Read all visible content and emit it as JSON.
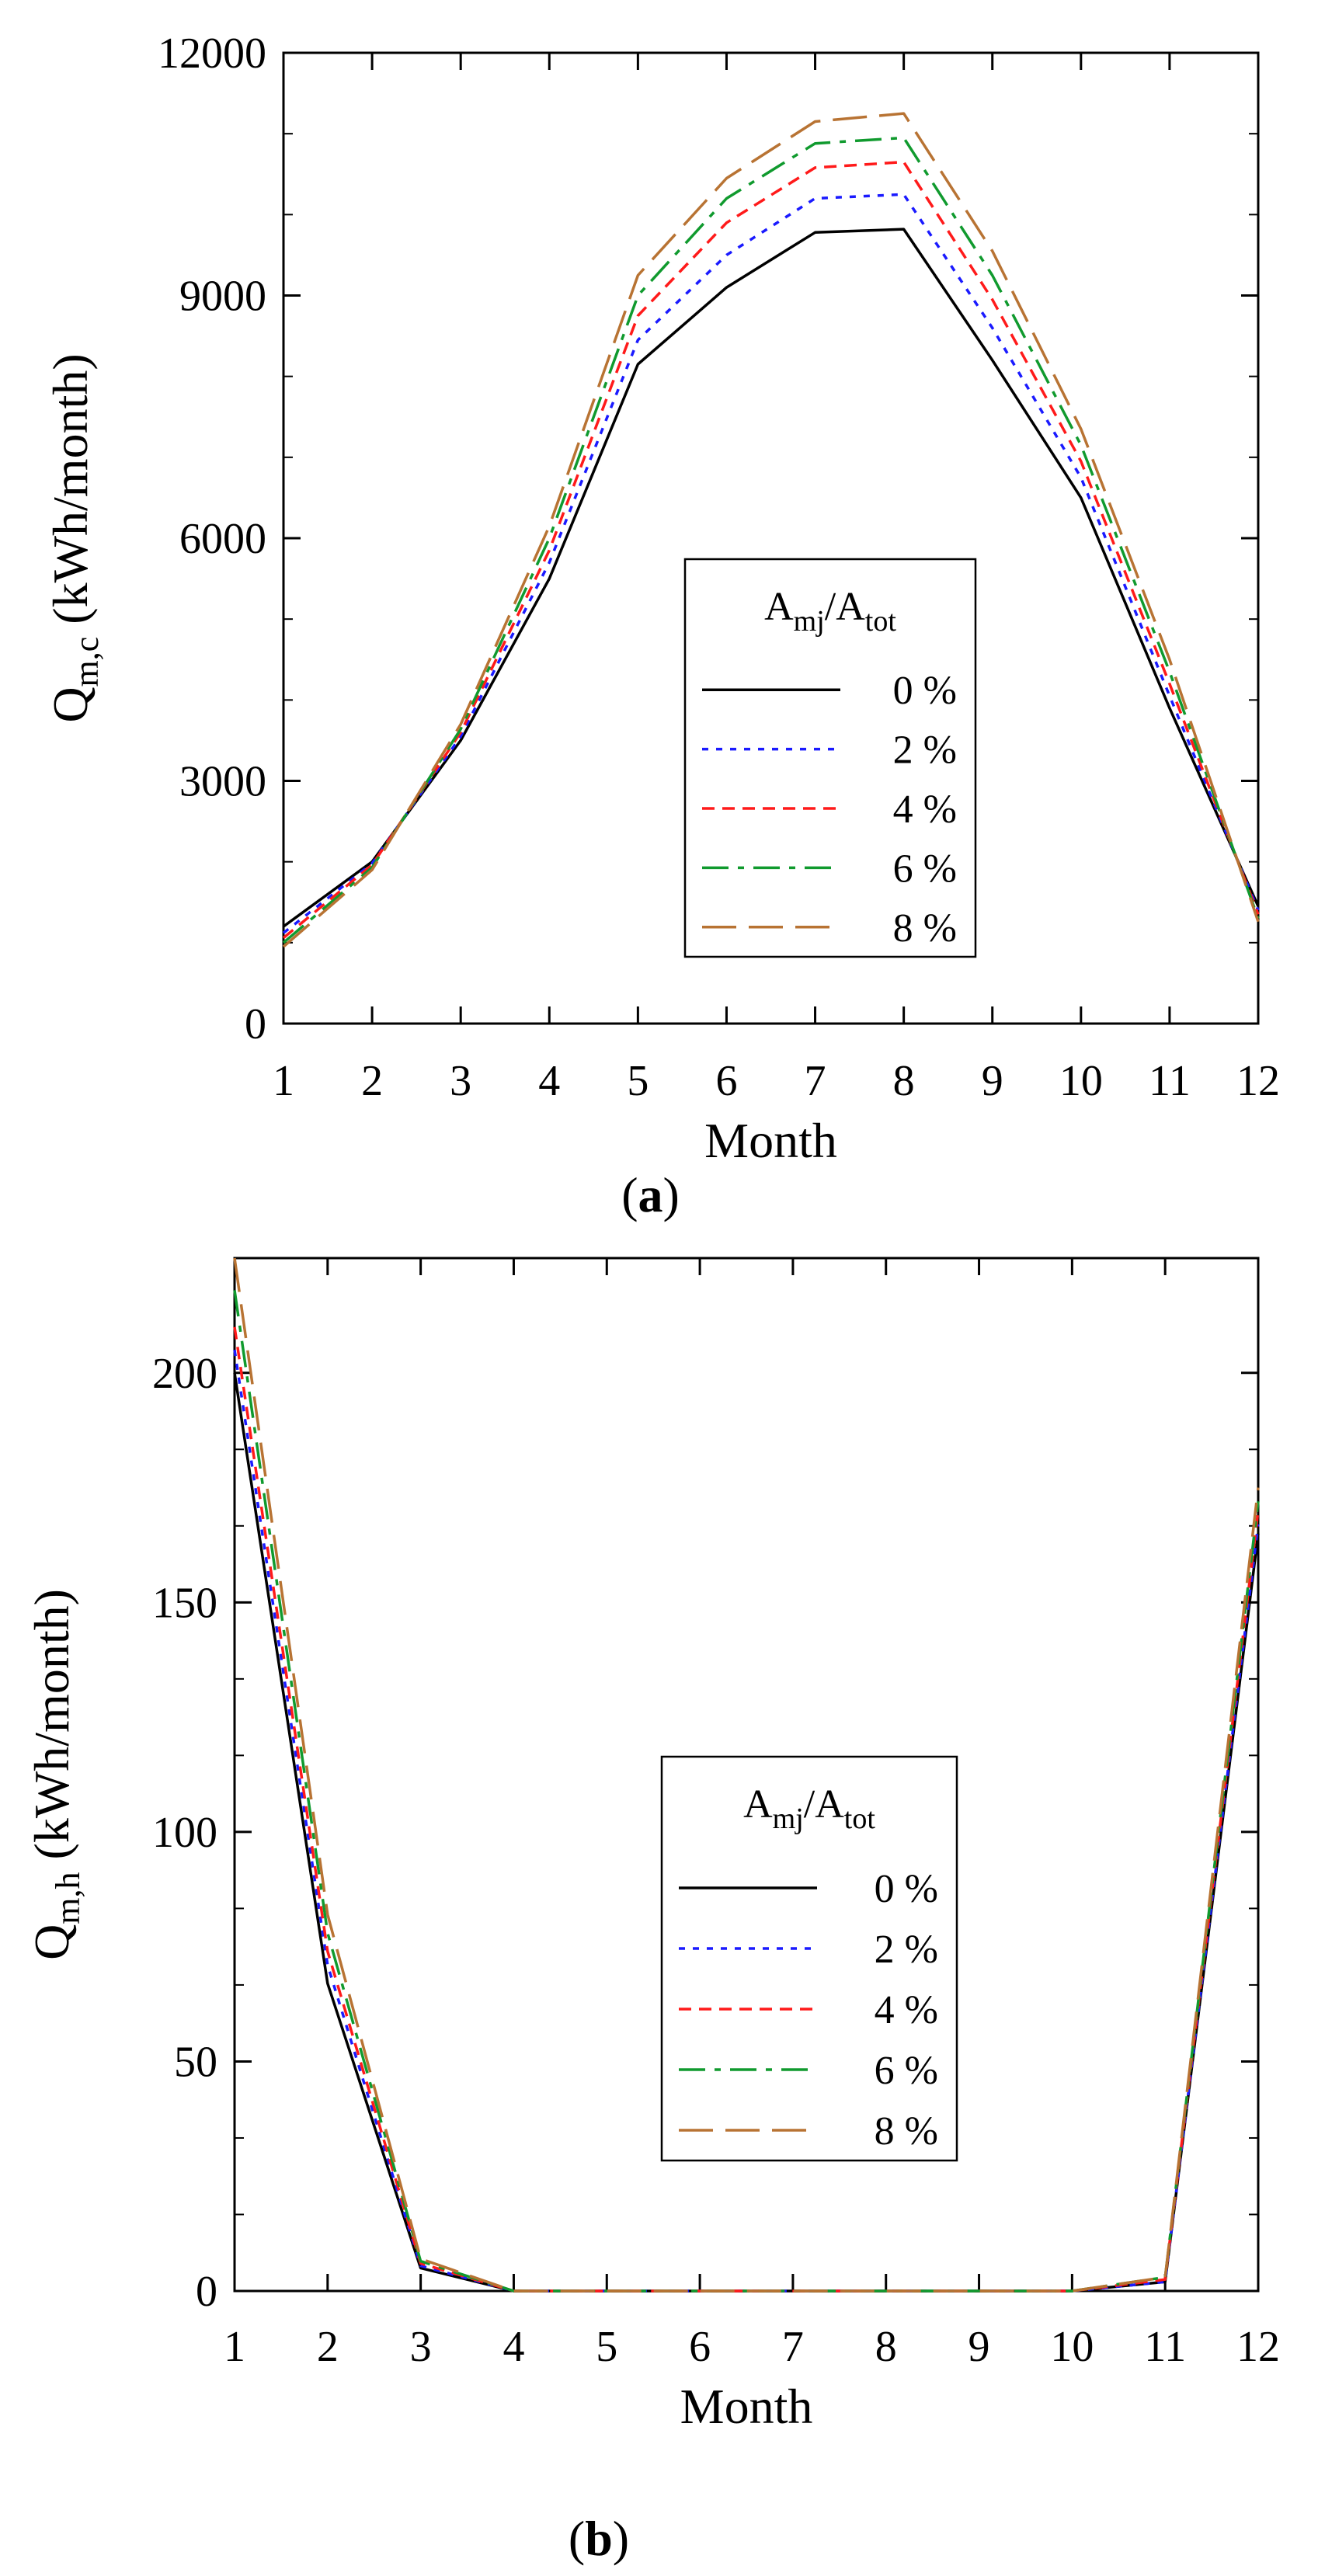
{
  "colors": {
    "background": "#ffffff",
    "axis": "#000000",
    "series": [
      "#000000",
      "#1a1aff",
      "#ff1a1a",
      "#109a2e",
      "#b87333"
    ]
  },
  "chart_data": [
    {
      "type": "line",
      "panel_label": "(a)",
      "xlabel": "Month",
      "ylabel": "Qm,c (kWh/month)",
      "ylabel_main": "Q",
      "ylabel_sub": "m,c",
      "ylabel_unit": " (kWh/month)",
      "xlim": [
        1,
        12
      ],
      "ylim": [
        0,
        12000
      ],
      "xticks": [
        1,
        2,
        3,
        4,
        5,
        6,
        7,
        8,
        9,
        10,
        11,
        12
      ],
      "yticks": [
        0,
        3000,
        6000,
        9000,
        12000
      ],
      "legend_title": "Amj/Atot",
      "legend_title_parts": [
        "A",
        "mj",
        "/A",
        "tot"
      ],
      "legend_position": "center-right",
      "x": [
        1,
        2,
        3,
        4,
        5,
        6,
        7,
        8,
        9,
        10,
        11,
        12
      ],
      "series": [
        {
          "name": "0 %",
          "values": [
            1200,
            2000,
            3500,
            5500,
            8150,
            9100,
            9780,
            9820,
            8200,
            6500,
            3900,
            1450
          ]
        },
        {
          "name": "2 %",
          "values": [
            1120,
            1980,
            3550,
            5700,
            8450,
            9500,
            10200,
            10250,
            8600,
            6750,
            4050,
            1400
          ]
        },
        {
          "name": "4 %",
          "values": [
            1060,
            1960,
            3600,
            5850,
            8750,
            9900,
            10580,
            10650,
            8950,
            6950,
            4200,
            1350
          ]
        },
        {
          "name": "6 %",
          "values": [
            1000,
            1930,
            3640,
            6000,
            9000,
            10200,
            10880,
            10950,
            9250,
            7150,
            4350,
            1300
          ]
        },
        {
          "name": "8 %",
          "values": [
            950,
            1900,
            3700,
            6150,
            9250,
            10450,
            11150,
            11250,
            9550,
            7350,
            4500,
            1260
          ]
        }
      ]
    },
    {
      "type": "line",
      "panel_label": "(b)",
      "xlabel": "Month",
      "ylabel": "Qm,h (kWh/month)",
      "ylabel_main": "Q",
      "ylabel_sub": "m,h",
      "ylabel_unit": " (kWh/month)",
      "xlim": [
        1,
        12
      ],
      "ylim": [
        0,
        225
      ],
      "xticks": [
        1,
        2,
        3,
        4,
        5,
        6,
        7,
        8,
        9,
        10,
        11,
        12
      ],
      "yticks": [
        0,
        50,
        100,
        150,
        200
      ],
      "legend_title": "Amj/Atot",
      "legend_title_parts": [
        "A",
        "mj",
        "/A",
        "tot"
      ],
      "legend_position": "center-right",
      "x": [
        1,
        2,
        3,
        4,
        5,
        6,
        7,
        8,
        9,
        10,
        11,
        12
      ],
      "series": [
        {
          "name": "0 %",
          "values": [
            200,
            67,
            5,
            0,
            0,
            0,
            0,
            0,
            0,
            0,
            2,
            165
          ]
        },
        {
          "name": "2 %",
          "values": [
            205,
            71,
            5.5,
            0,
            0,
            0,
            0,
            0,
            0,
            0,
            2,
            167
          ]
        },
        {
          "name": "4 %",
          "values": [
            210,
            74,
            6,
            0,
            0,
            0,
            0,
            0,
            0,
            0,
            2.5,
            170
          ]
        },
        {
          "name": "6 %",
          "values": [
            218,
            78,
            6.5,
            0,
            0,
            0,
            0,
            0,
            0,
            0,
            3,
            172
          ]
        },
        {
          "name": "8 %",
          "values": [
            225,
            82,
            7,
            0,
            0,
            0,
            0,
            0,
            0,
            0,
            3,
            175
          ]
        }
      ]
    }
  ]
}
